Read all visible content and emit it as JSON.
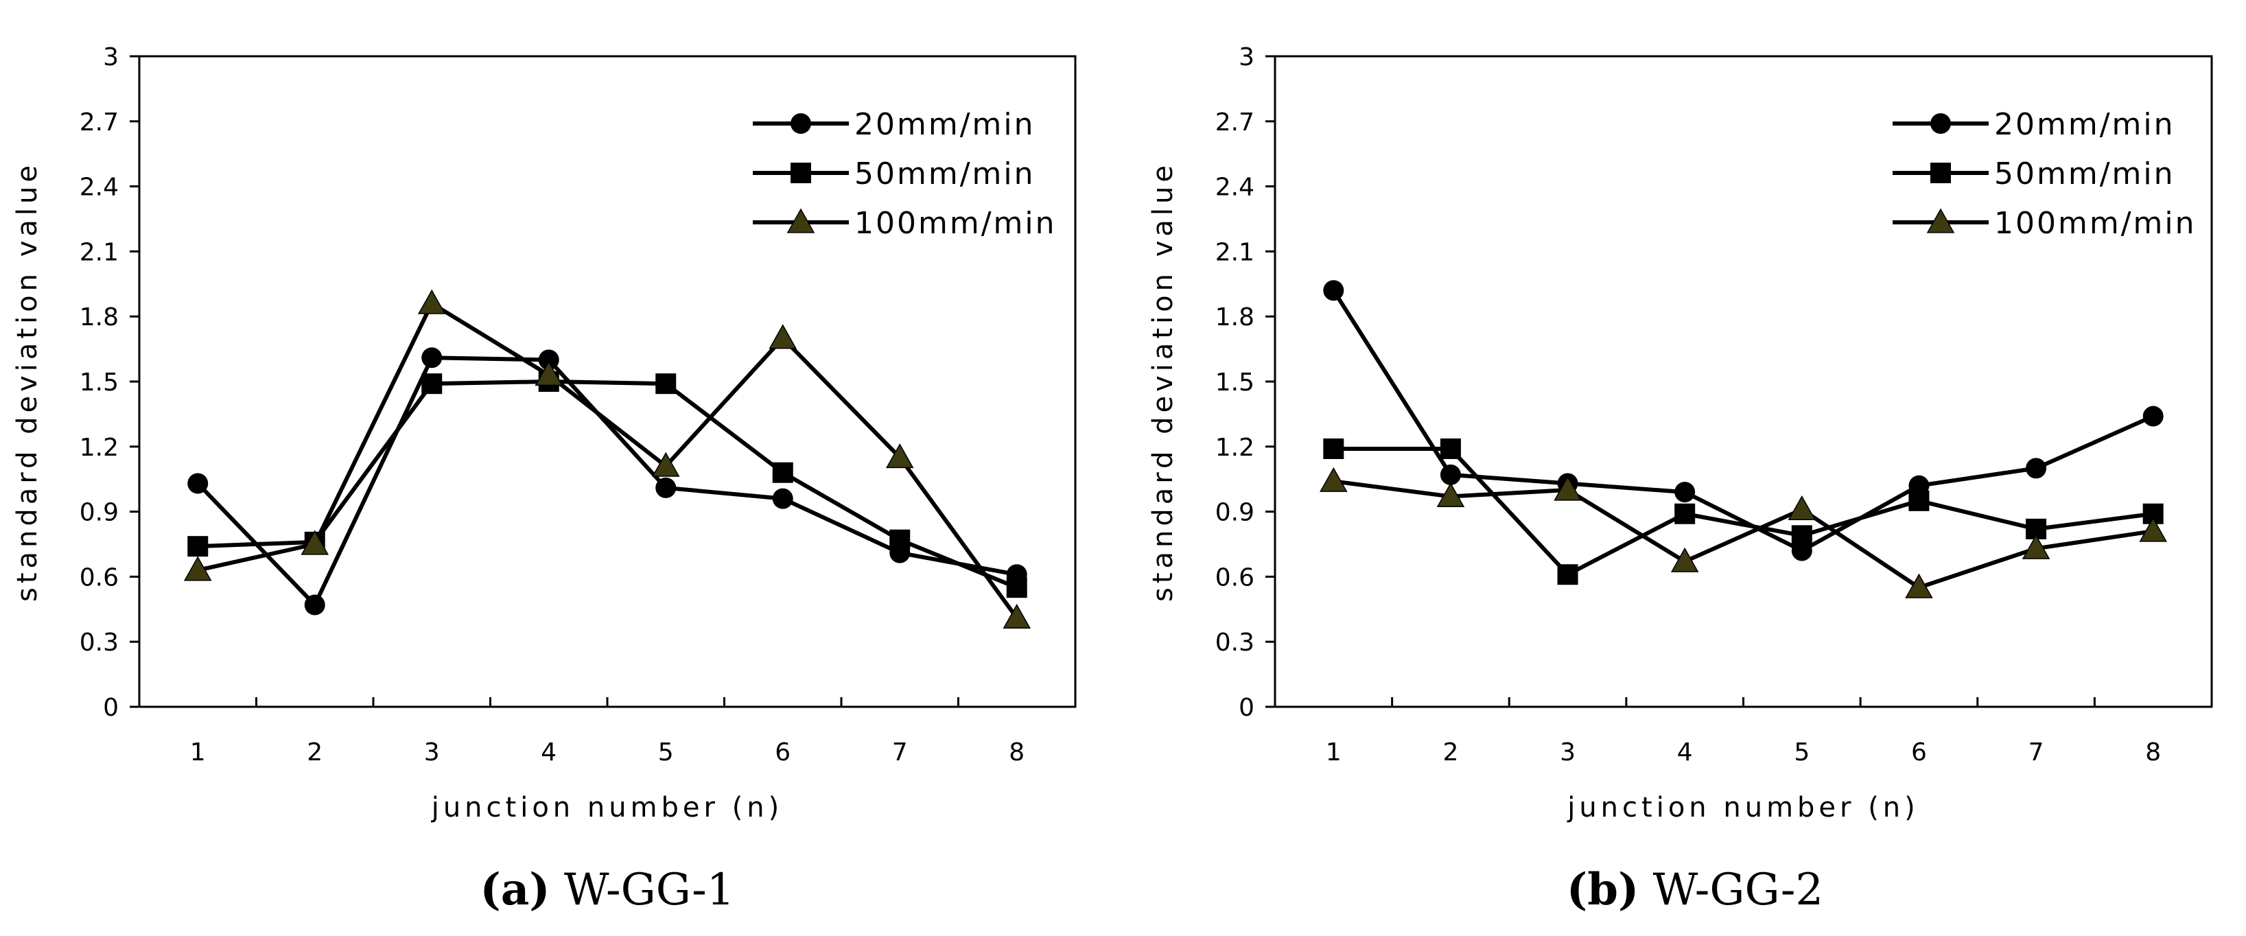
{
  "chart_data": [
    {
      "type": "line",
      "panel_label": "(a)",
      "title": "W-GG-1",
      "xlabel": "junction number (n)",
      "ylabel": "standard deviation value",
      "x": [
        1,
        2,
        3,
        4,
        5,
        6,
        7,
        8
      ],
      "x_tick_labels": [
        "1",
        "2",
        "3",
        "4",
        "5",
        "6",
        "7",
        "8"
      ],
      "ylim": [
        0,
        3
      ],
      "y_ticks": [
        0,
        0.3,
        0.6,
        0.9,
        1.2,
        1.5,
        1.8,
        2.1,
        2.4,
        2.7,
        3
      ],
      "y_tick_labels": [
        "0",
        "0.3",
        "0.6",
        "0.9",
        "1.2",
        "1.5",
        "1.8",
        "2.1",
        "2.4",
        "2.7",
        "3"
      ],
      "legend_position": "top-right",
      "grid": false,
      "series": [
        {
          "name": "20mm/min",
          "marker": "circle",
          "color": "#000000",
          "values": [
            1.03,
            0.47,
            1.61,
            1.6,
            1.01,
            0.96,
            0.71,
            0.61
          ]
        },
        {
          "name": "50mm/min",
          "marker": "square",
          "color": "#000000",
          "values": [
            0.74,
            0.76,
            1.49,
            1.5,
            1.49,
            1.08,
            0.77,
            0.55
          ]
        },
        {
          "name": "100mm/min",
          "marker": "triangle",
          "color": "#3d3a10",
          "values": [
            0.63,
            0.75,
            1.86,
            1.53,
            1.11,
            1.7,
            1.15,
            0.41
          ]
        }
      ]
    },
    {
      "type": "line",
      "panel_label": "(b)",
      "title": "W-GG-2",
      "xlabel": "junction number (n)",
      "ylabel": "standard deviation value",
      "x": [
        1,
        2,
        3,
        4,
        5,
        6,
        7,
        8
      ],
      "x_tick_labels": [
        "1",
        "2",
        "3",
        "4",
        "5",
        "6",
        "7",
        "8"
      ],
      "ylim": [
        0,
        3
      ],
      "y_ticks": [
        0,
        0.3,
        0.6,
        0.9,
        1.2,
        1.5,
        1.8,
        2.1,
        2.4,
        2.7,
        3
      ],
      "y_tick_labels": [
        "0",
        "0.3",
        "0.6",
        "0.9",
        "1.2",
        "1.5",
        "1.8",
        "2.1",
        "2.4",
        "2.7",
        "3"
      ],
      "legend_position": "top-right",
      "grid": false,
      "series": [
        {
          "name": "20mm/min",
          "marker": "circle",
          "color": "#000000",
          "values": [
            1.92,
            1.07,
            1.03,
            0.99,
            0.72,
            1.02,
            1.1,
            1.34
          ]
        },
        {
          "name": "50mm/min",
          "marker": "square",
          "color": "#000000",
          "values": [
            1.19,
            1.19,
            0.61,
            0.89,
            0.79,
            0.95,
            0.82,
            0.89
          ]
        },
        {
          "name": "100mm/min",
          "marker": "triangle",
          "color": "#3d3a10",
          "values": [
            1.04,
            0.97,
            1.0,
            0.67,
            0.91,
            0.55,
            0.73,
            0.81
          ]
        }
      ]
    }
  ]
}
